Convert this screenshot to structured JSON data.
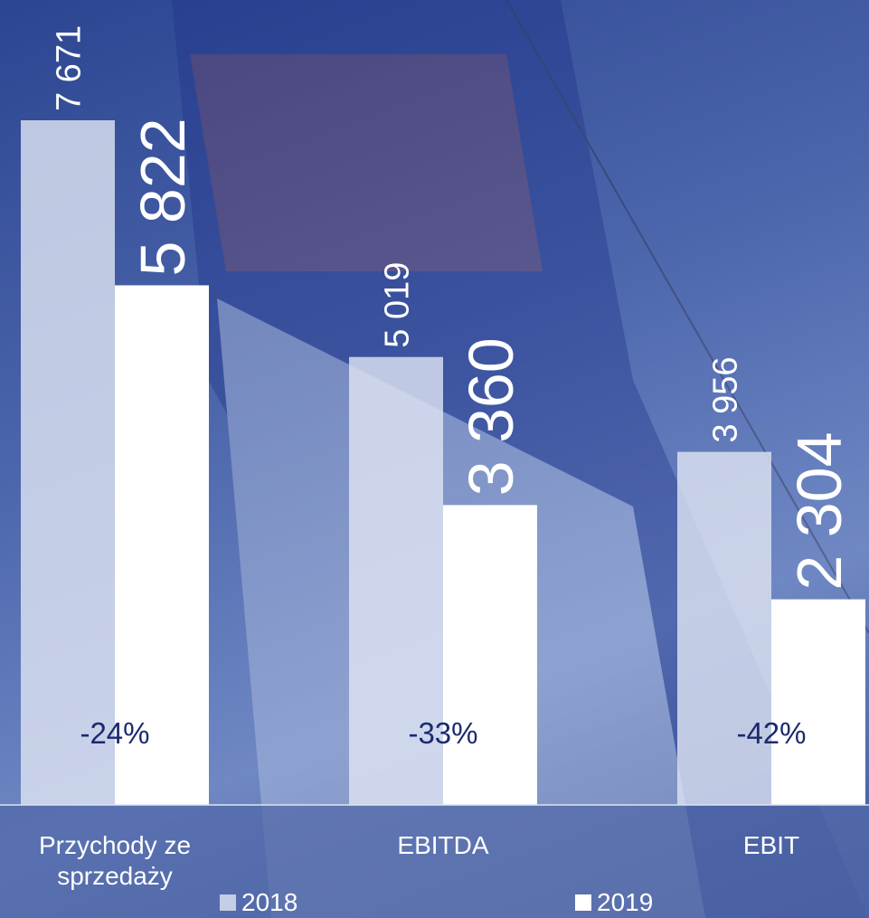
{
  "chart_data": {
    "type": "bar",
    "categories": [
      "Przychody ze sprzedaży",
      "EBITDA",
      "EBIT"
    ],
    "series": [
      {
        "name": "2018",
        "color": "#dde3f2",
        "values": [
          7671,
          5019,
          3956
        ],
        "value_labels": [
          "7 671",
          "5 019",
          "3 956"
        ]
      },
      {
        "name": "2019",
        "color": "#ffffff",
        "values": [
          5822,
          3360,
          2304
        ],
        "value_labels": [
          "5 822",
          "3 360",
          "2 304"
        ]
      }
    ],
    "annotations": [
      "-24%",
      "-33%",
      "-42%"
    ]
  }
}
